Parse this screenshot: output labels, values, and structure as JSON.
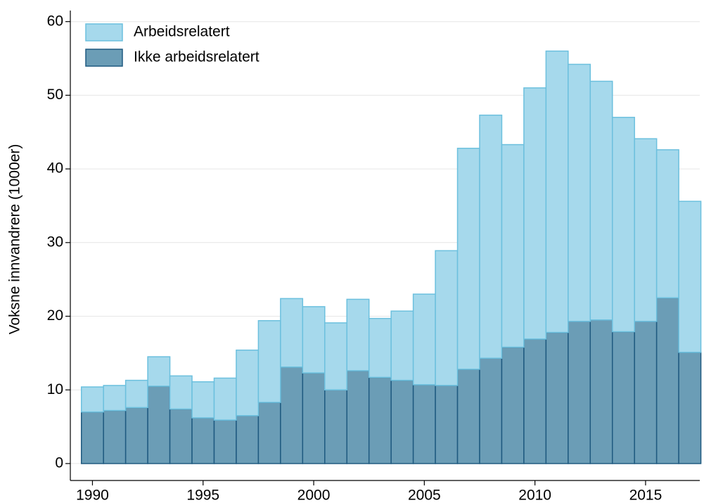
{
  "chart_data": {
    "type": "bar",
    "stacked": true,
    "y_label": "Voksne innvandrere (1000er)",
    "x": [
      1990,
      1991,
      1992,
      1993,
      1994,
      1995,
      1996,
      1997,
      1998,
      1999,
      2000,
      2001,
      2002,
      2003,
      2004,
      2005,
      2006,
      2007,
      2008,
      2009,
      2010,
      2011,
      2012,
      2013,
      2014,
      2015,
      2016,
      2017
    ],
    "series": [
      {
        "name": "Arbeidsrelatert",
        "color": "#a6d9ec",
        "edge": "#6cc0de",
        "values": [
          3.4,
          3.4,
          3.7,
          4.0,
          4.5,
          4.9,
          5.7,
          8.9,
          11.1,
          9.3,
          9.0,
          9.1,
          9.7,
          8.0,
          9.4,
          12.3,
          18.3,
          30.0,
          33.0,
          27.5,
          34.1,
          38.2,
          34.9,
          32.4,
          29.1,
          24.8,
          20.1,
          20.5
        ]
      },
      {
        "name": "Ikke arbeidsrelatert",
        "color": "#6b9db6",
        "edge": "#1f5a80",
        "values": [
          7.0,
          7.2,
          7.6,
          10.5,
          7.4,
          6.2,
          5.9,
          6.5,
          8.3,
          13.1,
          12.3,
          10.0,
          12.6,
          11.7,
          11.3,
          10.7,
          10.6,
          12.8,
          14.3,
          15.8,
          16.9,
          17.8,
          19.3,
          19.5,
          17.9,
          19.3,
          22.5,
          15.1
        ]
      }
    ],
    "xlim": [
      1989.0,
      2017.45
    ],
    "xticks": [
      1990,
      1995,
      2000,
      2005,
      2010,
      2015
    ],
    "ylim": [
      -2.3,
      61.5
    ],
    "yticks": [
      0,
      10,
      20,
      30,
      40,
      50,
      60
    ],
    "grid": true,
    "legend": "upper left"
  }
}
